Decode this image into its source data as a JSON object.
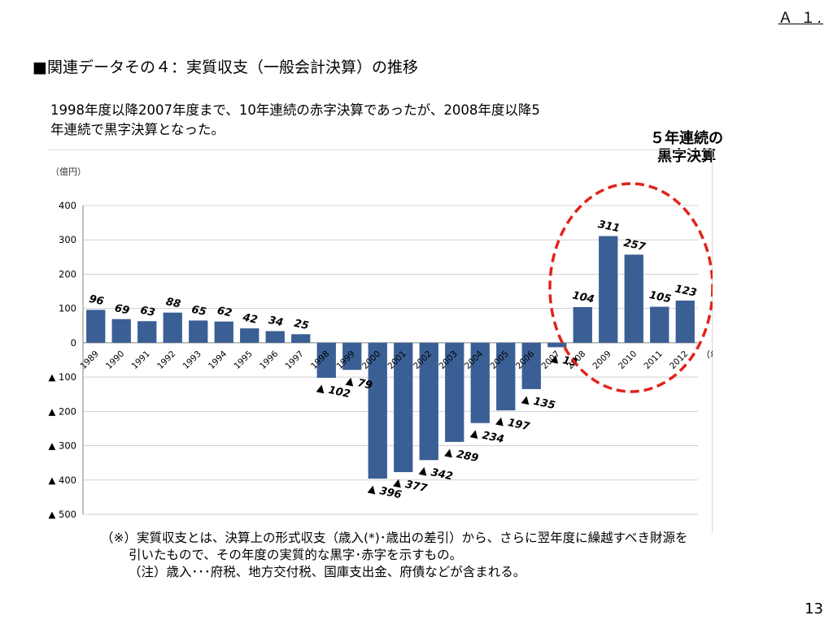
{
  "corner_label": "Ａ １.",
  "heading": "■関連データその４：実質収支（一般会計決算）の推移",
  "intro": {
    "line1": "1998年度以降2007年度まで、10年連続の赤字決算であったが、2008年度以降5",
    "line2": "年連続で黒字決算となった。"
  },
  "highlight": {
    "line1": "５年連続の",
    "line2": "黒字決算",
    "color": "#e2231a"
  },
  "note": {
    "line1": "（※）実質収支とは、決算上の形式収支（歳入(*)･歳出の差引）から、さらに翌年度に繰越すべき財源を",
    "line2": "引いたもので、その年度の実質的な黒字･赤字を示すもの。",
    "line3": "（注）歳入･･･府税、地方交付税、国庫支出金、府債などが含まれる。"
  },
  "page_number": "13",
  "chart_data": {
    "type": "bar",
    "unit_label": "（億円）",
    "xlabel": "（年度）",
    "categories": [
      "1989",
      "1990",
      "1991",
      "1992",
      "1993",
      "1994",
      "1995",
      "1996",
      "1997",
      "1998",
      "1999",
      "2000",
      "2001",
      "2002",
      "2003",
      "2004",
      "2005",
      "2006",
      "2007",
      "2008",
      "2009",
      "2010",
      "2011",
      "2012"
    ],
    "values": [
      96,
      69,
      63,
      88,
      65,
      62,
      42,
      34,
      25,
      -102,
      -79,
      -396,
      -377,
      -342,
      -289,
      -234,
      -197,
      -135,
      -13,
      104,
      311,
      257,
      105,
      123
    ],
    "data_labels": [
      "96",
      "69",
      "63",
      "88",
      "65",
      "62",
      "42",
      "34",
      "25",
      "▲ 102",
      "▲ 79",
      "▲ 396",
      "▲ 377",
      "▲ 342",
      "▲ 289",
      "▲ 234",
      "▲ 197",
      "▲ 135",
      "▲ 13",
      "104",
      "311",
      "257",
      "105",
      "123"
    ],
    "ylim": [
      -500,
      400
    ],
    "yticks": [
      400,
      300,
      200,
      100,
      0,
      -100,
      -200,
      -300,
      -400,
      -500
    ],
    "ytick_labels": [
      "400",
      "300",
      "200",
      "100",
      "0",
      "▲ 100",
      "▲ 200",
      "▲ 300",
      "▲ 400",
      "▲ 500"
    ],
    "grid": true,
    "bar_color": "#3a5f94"
  }
}
